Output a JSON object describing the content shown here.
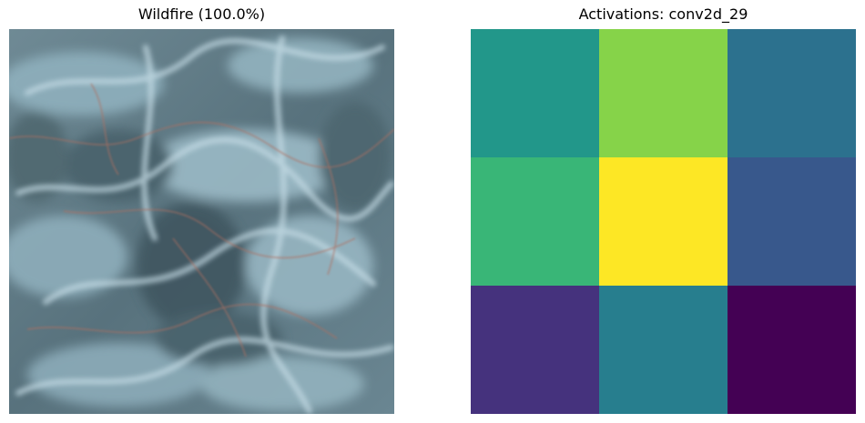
{
  "left_panel": {
    "title": "Wildfire (100.0%)",
    "image_icon": "satellite-terrain-image"
  },
  "right_panel": {
    "title": "Activations: conv2d_29"
  },
  "colors": {
    "terrain_base": "#5f7a86",
    "terrain_light": "#a9c6d2",
    "terrain_dark": "#3e545e",
    "burn_trace": "#b07060"
  },
  "chart_data": {
    "type": "heatmap",
    "title": "Activations: conv2d_29",
    "rows": 3,
    "cols": 3,
    "colormap": "viridis",
    "grid": false,
    "axes_visible": false,
    "values": [
      [
        0.53,
        0.82,
        0.38
      ],
      [
        0.67,
        1.0,
        0.28
      ],
      [
        0.15,
        0.43,
        0.0
      ]
    ]
  }
}
